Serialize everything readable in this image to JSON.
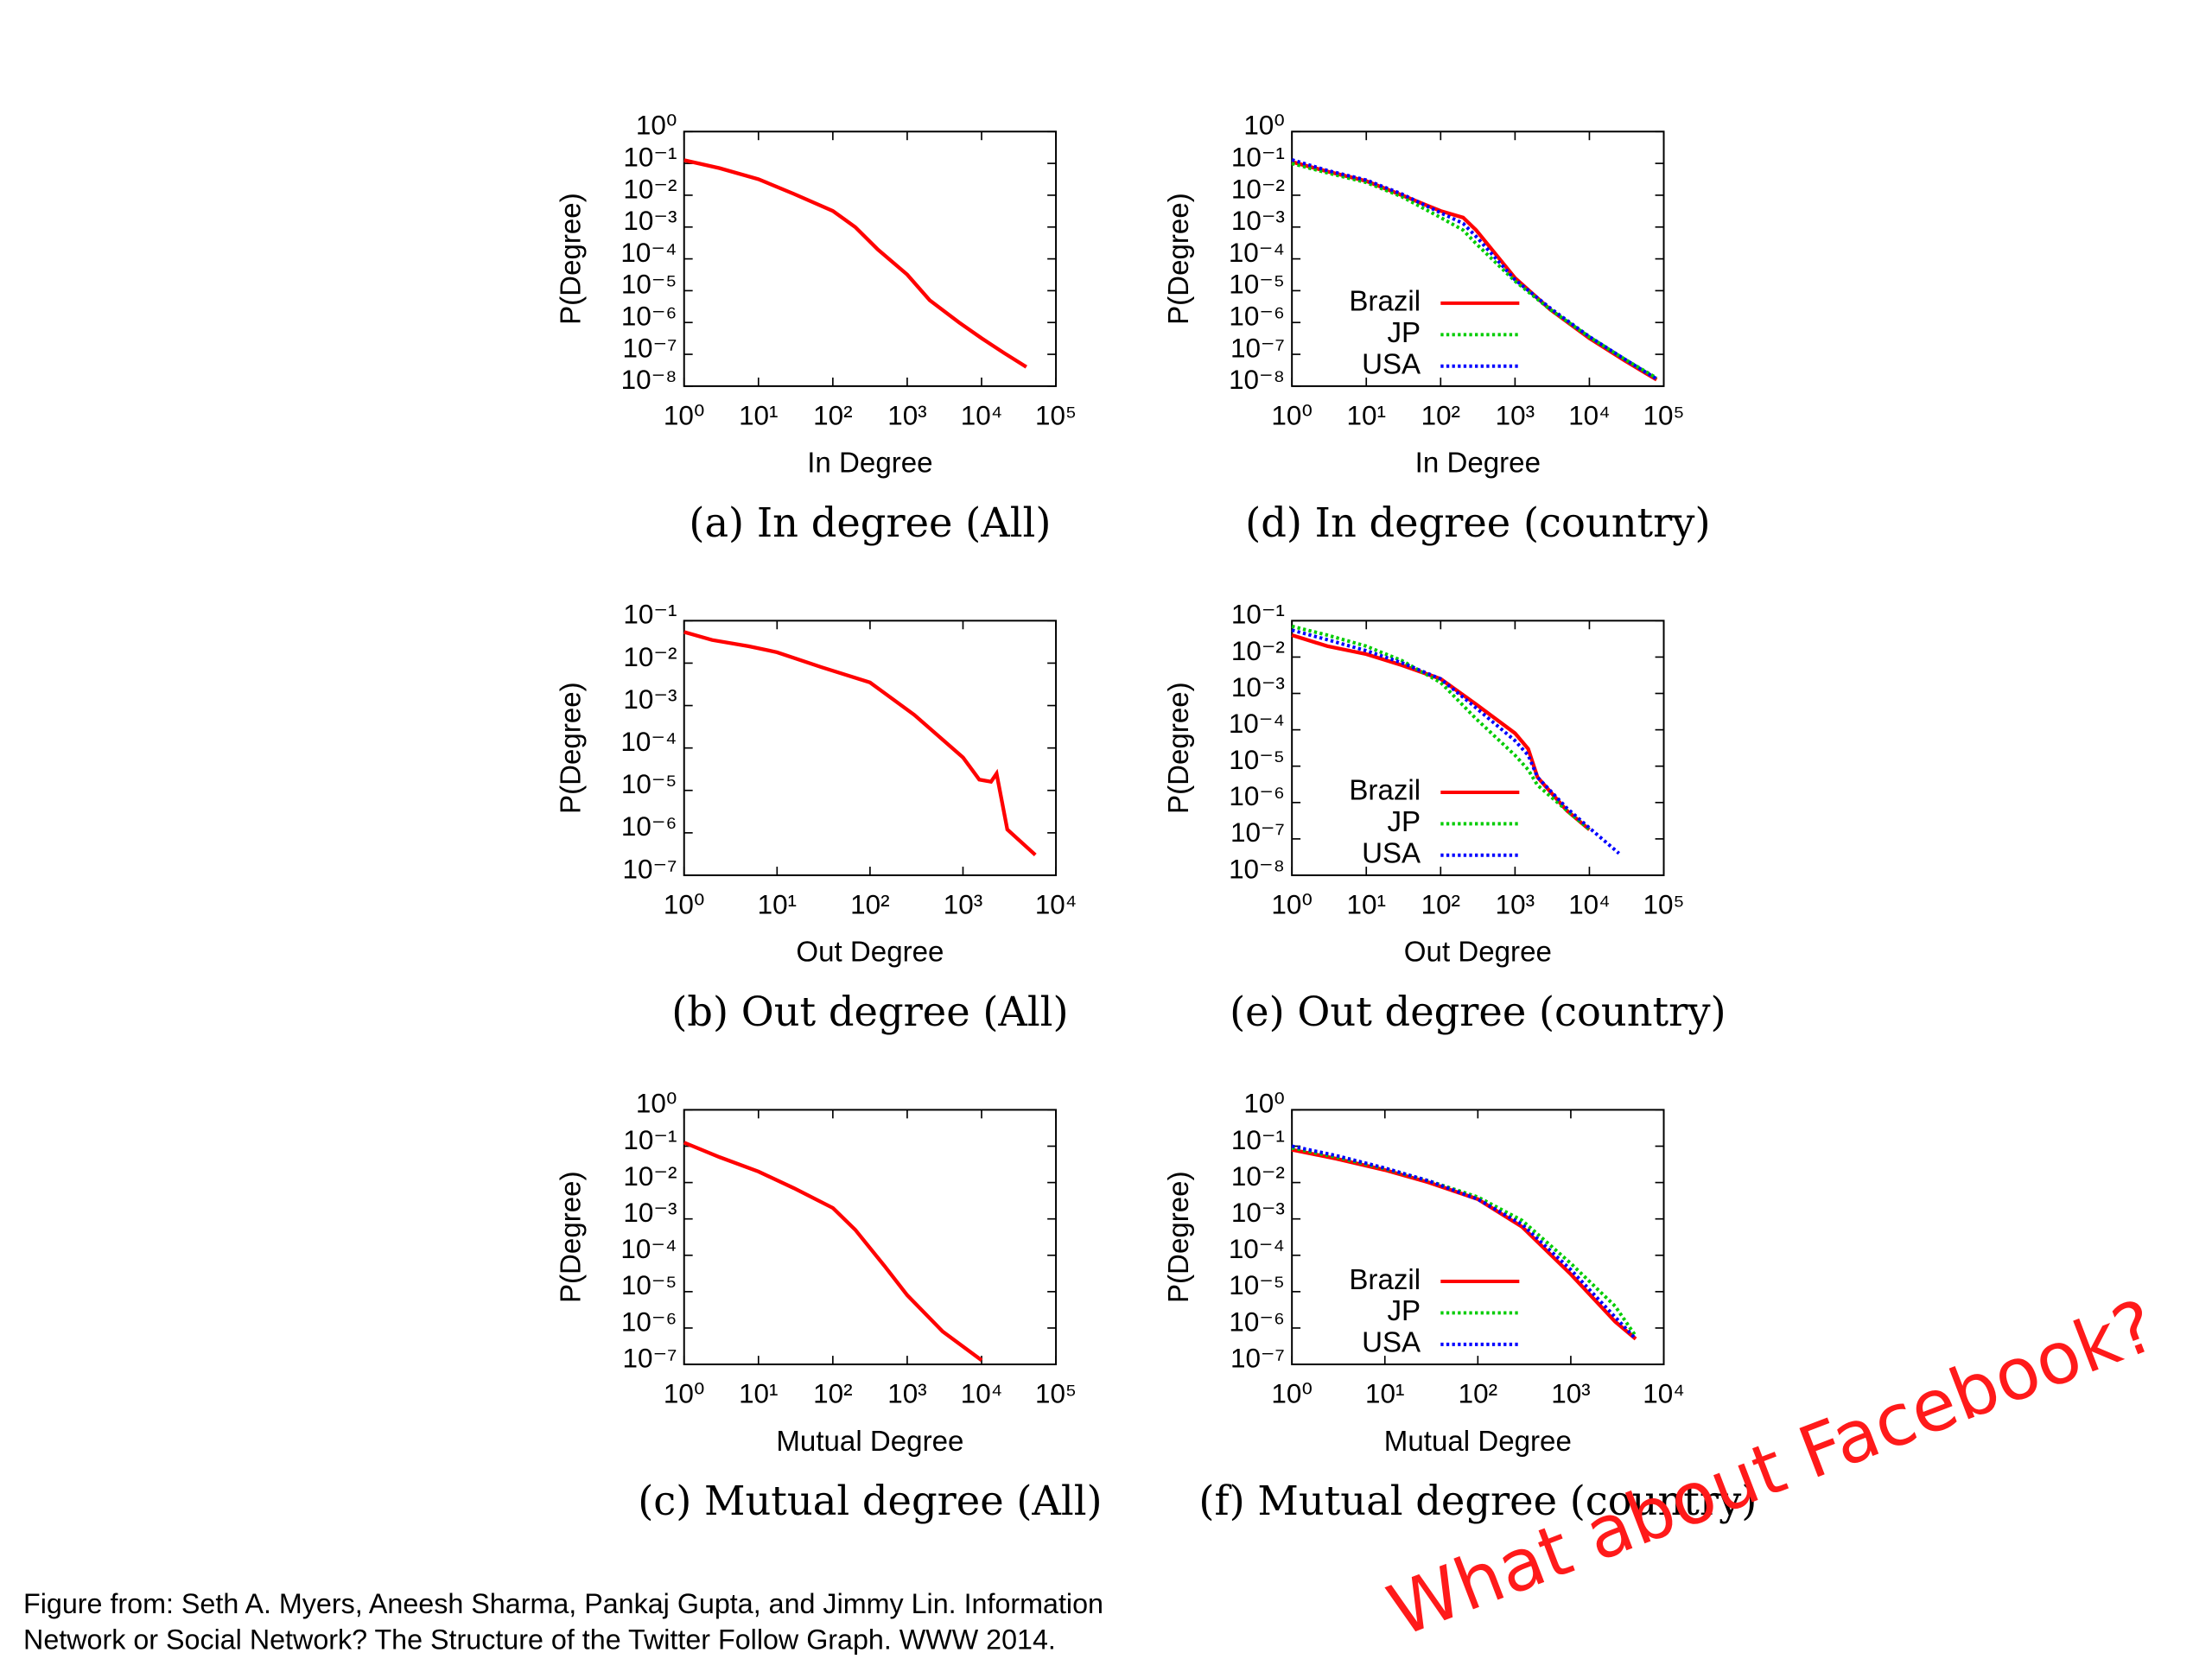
{
  "chart_data": [
    {
      "type": "line",
      "title": "(a) In degree (All)",
      "x_label": "In Degree",
      "y_label": "P(Degree)",
      "log_x": true,
      "log_y": true,
      "xlim": [
        1,
        100000
      ],
      "ylim": [
        1e-08,
        1
      ],
      "xticks": [
        {
          "value": 1,
          "label": "10⁰"
        },
        {
          "value": 10,
          "label": "10¹"
        },
        {
          "value": 100,
          "label": "10²"
        },
        {
          "value": 1000,
          "label": "10³"
        },
        {
          "value": 10000,
          "label": "10⁴"
        },
        {
          "value": 100000,
          "label": "10⁵"
        }
      ],
      "yticks": [
        {
          "value": 1e-08,
          "label": "10⁻⁸"
        },
        {
          "value": 1e-07,
          "label": "10⁻⁷"
        },
        {
          "value": 1e-06,
          "label": "10⁻⁶"
        },
        {
          "value": 1e-05,
          "label": "10⁻⁵"
        },
        {
          "value": 0.0001,
          "label": "10⁻⁴"
        },
        {
          "value": 0.001,
          "label": "10⁻³"
        },
        {
          "value": 0.01,
          "label": "10⁻²"
        },
        {
          "value": 0.1,
          "label": "10⁻¹"
        },
        {
          "value": 1,
          "label": "10⁰"
        }
      ],
      "series": [
        {
          "color": "#ff0000",
          "dash": "solid",
          "x": [
            1,
            3,
            10,
            30,
            100,
            200,
            400,
            1000,
            2000,
            5000,
            10000,
            20000,
            40000
          ],
          "values": [
            0.126,
            0.071,
            0.032,
            0.011,
            0.0032,
            0.001,
            0.0002,
            3.2e-05,
            5e-06,
            1e-06,
            3.2e-07,
            1.1e-07,
            4e-08
          ]
        }
      ]
    },
    {
      "type": "line",
      "title": "(b) Out degree (All)",
      "x_label": "Out Degree",
      "y_label": "P(Degree)",
      "log_x": true,
      "log_y": true,
      "xlim": [
        1,
        10000
      ],
      "ylim": [
        1e-07,
        0.1
      ],
      "xticks": [
        {
          "value": 1,
          "label": "10⁰"
        },
        {
          "value": 10,
          "label": "10¹"
        },
        {
          "value": 100,
          "label": "10²"
        },
        {
          "value": 1000,
          "label": "10³"
        },
        {
          "value": 10000,
          "label": "10⁴"
        }
      ],
      "yticks": [
        {
          "value": 1e-07,
          "label": "10⁻⁷"
        },
        {
          "value": 1e-06,
          "label": "10⁻⁶"
        },
        {
          "value": 1e-05,
          "label": "10⁻⁵"
        },
        {
          "value": 0.0001,
          "label": "10⁻⁴"
        },
        {
          "value": 0.001,
          "label": "10⁻³"
        },
        {
          "value": 0.01,
          "label": "10⁻²"
        },
        {
          "value": 0.1,
          "label": "10⁻¹"
        }
      ],
      "series": [
        {
          "color": "#ff0000",
          "dash": "solid",
          "x": [
            1,
            2,
            5,
            8,
            10,
            30,
            100,
            300,
            1000,
            1500,
            2000,
            2300,
            3000,
            6000
          ],
          "values": [
            0.054,
            0.035,
            0.025,
            0.02,
            0.018,
            0.008,
            0.0035,
            0.0006,
            6e-05,
            1.8e-05,
            1.6e-05,
            2.5e-05,
            1.2e-06,
            3e-07
          ]
        }
      ]
    },
    {
      "type": "line",
      "title": "(c) Mutual degree (All)",
      "x_label": "Mutual Degree",
      "y_label": "P(Degree)",
      "log_x": true,
      "log_y": true,
      "xlim": [
        1,
        100000
      ],
      "ylim": [
        1e-07,
        1
      ],
      "xticks": [
        {
          "value": 1,
          "label": "10⁰"
        },
        {
          "value": 10,
          "label": "10¹"
        },
        {
          "value": 100,
          "label": "10²"
        },
        {
          "value": 1000,
          "label": "10³"
        },
        {
          "value": 10000,
          "label": "10⁴"
        },
        {
          "value": 100000,
          "label": "10⁵"
        }
      ],
      "yticks": [
        {
          "value": 1e-07,
          "label": "10⁻⁷"
        },
        {
          "value": 1e-06,
          "label": "10⁻⁶"
        },
        {
          "value": 1e-05,
          "label": "10⁻⁵"
        },
        {
          "value": 0.0001,
          "label": "10⁻⁴"
        },
        {
          "value": 0.001,
          "label": "10⁻³"
        },
        {
          "value": 0.01,
          "label": "10⁻²"
        },
        {
          "value": 0.1,
          "label": "10⁻¹"
        },
        {
          "value": 1,
          "label": "10⁰"
        }
      ],
      "series": [
        {
          "color": "#ff0000",
          "dash": "solid",
          "x": [
            1,
            3,
            10,
            30,
            100,
            200,
            500,
            1000,
            3000,
            10000
          ],
          "values": [
            0.126,
            0.05,
            0.02,
            0.007,
            0.002,
            0.0005,
            5e-05,
            8e-06,
            8e-07,
            1.3e-07
          ]
        }
      ]
    },
    {
      "type": "line",
      "title": "(d) In degree (country)",
      "x_label": "In Degree",
      "y_label": "P(Degree)",
      "log_x": true,
      "log_y": true,
      "legend": "center right",
      "xlim": [
        1,
        100000
      ],
      "ylim": [
        1e-08,
        1
      ],
      "xticks": [
        {
          "value": 1,
          "label": "10⁰"
        },
        {
          "value": 10,
          "label": "10¹"
        },
        {
          "value": 100,
          "label": "10²"
        },
        {
          "value": 1000,
          "label": "10³"
        },
        {
          "value": 10000,
          "label": "10⁴"
        },
        {
          "value": 100000,
          "label": "10⁵"
        }
      ],
      "yticks": [
        {
          "value": 1e-08,
          "label": "10⁻⁸"
        },
        {
          "value": 1e-07,
          "label": "10⁻⁷"
        },
        {
          "value": 1e-06,
          "label": "10⁻⁶"
        },
        {
          "value": 1e-05,
          "label": "10⁻⁵"
        },
        {
          "value": 0.0001,
          "label": "10⁻⁴"
        },
        {
          "value": 0.001,
          "label": "10⁻³"
        },
        {
          "value": 0.01,
          "label": "10⁻²"
        },
        {
          "value": 0.1,
          "label": "10⁻¹"
        },
        {
          "value": 1,
          "label": "10⁰"
        }
      ],
      "series": [
        {
          "name": "Brazil",
          "color": "#ff0000",
          "dash": "solid",
          "x": [
            1,
            3,
            10,
            30,
            100,
            200,
            300,
            1000,
            3000,
            10000,
            30000,
            80000
          ],
          "values": [
            0.112,
            0.056,
            0.028,
            0.01,
            0.0032,
            0.002,
            0.0008,
            2.5e-05,
            2.5e-06,
            3.2e-07,
            6.3e-08,
            1.6e-08
          ]
        },
        {
          "name": "JP",
          "color": "#00cc00",
          "dash": "dotted",
          "x": [
            1,
            3,
            10,
            30,
            100,
            200,
            300,
            1000,
            3000,
            10000,
            30000,
            80000
          ],
          "values": [
            0.1,
            0.05,
            0.025,
            0.009,
            0.002,
            0.0008,
            0.0003,
            2e-05,
            2.5e-06,
            3.5e-07,
            7e-08,
            1.8e-08
          ]
        },
        {
          "name": "USA",
          "color": "#0000ff",
          "dash": "dotted",
          "x": [
            1,
            3,
            10,
            30,
            100,
            200,
            300,
            1000,
            3000,
            10000,
            30000,
            80000
          ],
          "values": [
            0.13,
            0.06,
            0.03,
            0.011,
            0.0028,
            0.0013,
            0.0005,
            2.2e-05,
            2.8e-06,
            3.6e-07,
            7e-08,
            1.7e-08
          ]
        }
      ]
    },
    {
      "type": "line",
      "title": "(e) Out degree (country)",
      "x_label": "Out Degree",
      "y_label": "P(Degree)",
      "log_x": true,
      "log_y": true,
      "legend": "center right",
      "xlim": [
        1,
        100000
      ],
      "ylim": [
        1e-08,
        0.1
      ],
      "xticks": [
        {
          "value": 1,
          "label": "10⁰"
        },
        {
          "value": 10,
          "label": "10¹"
        },
        {
          "value": 100,
          "label": "10²"
        },
        {
          "value": 1000,
          "label": "10³"
        },
        {
          "value": 10000,
          "label": "10⁴"
        },
        {
          "value": 100000,
          "label": "10⁵"
        }
      ],
      "yticks": [
        {
          "value": 1e-08,
          "label": "10⁻⁸"
        },
        {
          "value": 1e-07,
          "label": "10⁻⁷"
        },
        {
          "value": 1e-06,
          "label": "10⁻⁶"
        },
        {
          "value": 1e-05,
          "label": "10⁻⁵"
        },
        {
          "value": 0.0001,
          "label": "10⁻⁴"
        },
        {
          "value": 0.001,
          "label": "10⁻³"
        },
        {
          "value": 0.01,
          "label": "10⁻²"
        },
        {
          "value": 0.1,
          "label": "10⁻¹"
        }
      ],
      "series": [
        {
          "name": "Brazil",
          "color": "#ff0000",
          "dash": "solid",
          "x": [
            1,
            3,
            10,
            30,
            100,
            300,
            1000,
            1500,
            2000,
            5000,
            10000
          ],
          "values": [
            0.04,
            0.02,
            0.012,
            0.006,
            0.0025,
            0.0005,
            8e-05,
            3e-05,
            5e-06,
            6e-07,
            1.8e-07
          ]
        },
        {
          "name": "JP",
          "color": "#00cc00",
          "dash": "dotted",
          "x": [
            1,
            3,
            10,
            30,
            100,
            300,
            1000,
            1500,
            2000,
            5000,
            10000
          ],
          "values": [
            0.07,
            0.04,
            0.02,
            0.008,
            0.002,
            0.0002,
            2e-05,
            8e-06,
            3e-06,
            6e-07,
            1.8e-07
          ]
        },
        {
          "name": "USA",
          "color": "#0000ff",
          "dash": "dotted",
          "x": [
            1,
            3,
            10,
            30,
            100,
            300,
            1000,
            1500,
            2000,
            5000,
            10000,
            25000
          ],
          "values": [
            0.055,
            0.03,
            0.015,
            0.007,
            0.0025,
            0.0004,
            5e-05,
            2e-05,
            5e-06,
            7e-07,
            2e-07,
            4e-08
          ]
        }
      ]
    },
    {
      "type": "line",
      "title": "(f) Mutual degree (country)",
      "x_label": "Mutual Degree",
      "y_label": "P(Degree)",
      "log_x": true,
      "log_y": true,
      "legend": "center right",
      "xlim": [
        1,
        10000
      ],
      "ylim": [
        1e-07,
        1
      ],
      "xticks": [
        {
          "value": 1,
          "label": "10⁰"
        },
        {
          "value": 10,
          "label": "10¹"
        },
        {
          "value": 100,
          "label": "10²"
        },
        {
          "value": 1000,
          "label": "10³"
        },
        {
          "value": 10000,
          "label": "10⁴"
        }
      ],
      "yticks": [
        {
          "value": 1e-07,
          "label": "10⁻⁷"
        },
        {
          "value": 1e-06,
          "label": "10⁻⁶"
        },
        {
          "value": 1e-05,
          "label": "10⁻⁵"
        },
        {
          "value": 0.0001,
          "label": "10⁻⁴"
        },
        {
          "value": 0.001,
          "label": "10⁻³"
        },
        {
          "value": 0.01,
          "label": "10⁻²"
        },
        {
          "value": 0.1,
          "label": "10⁻¹"
        },
        {
          "value": 1,
          "label": "10⁰"
        }
      ],
      "series": [
        {
          "name": "Brazil",
          "color": "#ff0000",
          "dash": "solid",
          "x": [
            1,
            3,
            10,
            30,
            100,
            300,
            1000,
            3000,
            5000
          ],
          "values": [
            0.08,
            0.045,
            0.022,
            0.01,
            0.0035,
            0.0006,
            3e-05,
            1.5e-06,
            5e-07
          ]
        },
        {
          "name": "JP",
          "color": "#00cc00",
          "dash": "dotted",
          "x": [
            1,
            3,
            10,
            30,
            100,
            300,
            1000,
            3000,
            5000
          ],
          "values": [
            0.09,
            0.05,
            0.024,
            0.011,
            0.004,
            0.0009,
            6e-05,
            4e-06,
            6e-07
          ]
        },
        {
          "name": "USA",
          "color": "#0000ff",
          "dash": "dotted",
          "x": [
            1,
            3,
            10,
            30,
            100,
            300,
            1000,
            3000,
            5000
          ],
          "values": [
            0.1,
            0.055,
            0.025,
            0.011,
            0.0035,
            0.0007,
            4e-05,
            2e-06,
            5e-07
          ]
        }
      ]
    }
  ],
  "source": [
    "Figure from: Seth A. Myers, Aneesh Sharma, Pankaj Gupta, and Jimmy Lin. Information",
    "Network or Social Network? The Structure of the Twitter Follow Graph. WWW 2014."
  ],
  "annotation": "What about Facebook?"
}
